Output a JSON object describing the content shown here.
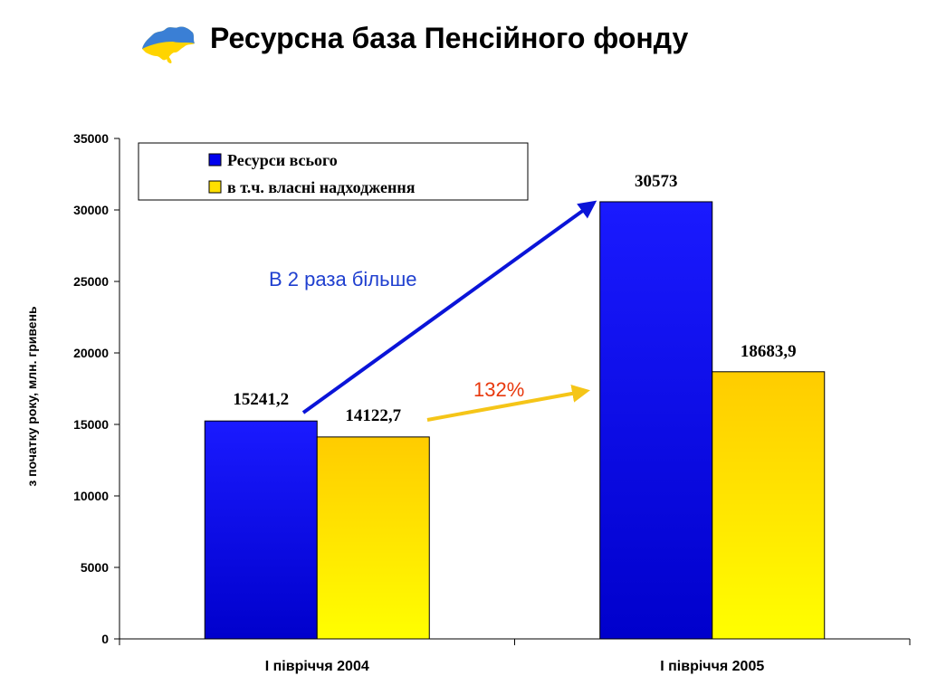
{
  "header": {
    "title": "Ресурсна база Пенсійного фонду",
    "logo_icon": "ukraine-map-icon"
  },
  "chart_data": {
    "type": "bar",
    "categories": [
      "І півріччя 2004",
      "І півріччя 2005"
    ],
    "series": [
      {
        "name": "Ресурси всього",
        "values": [
          15241.2,
          30573
        ],
        "labels": [
          "15241,2",
          "30573"
        ],
        "color_top": "#1a1aff",
        "color_bottom": "#0000cc"
      },
      {
        "name": "в т.ч. власні надходження",
        "values": [
          14122.7,
          18683.9
        ],
        "labels": [
          "14122,7",
          "18683,9"
        ],
        "color_top": "#ffcc00",
        "color_bottom": "#ffff00"
      }
    ],
    "ylabel": "з початку року, млн. гривень",
    "xlabel": "",
    "ylim": [
      0,
      35000
    ],
    "yticks": [
      0,
      5000,
      10000,
      15000,
      20000,
      25000,
      30000,
      35000
    ],
    "grid": false,
    "legend_position": "top-left",
    "annotations": [
      {
        "text": "В 2 раза більше",
        "color": "#1f3fcf"
      },
      {
        "text": "132%",
        "color": "#e8380d"
      }
    ]
  }
}
